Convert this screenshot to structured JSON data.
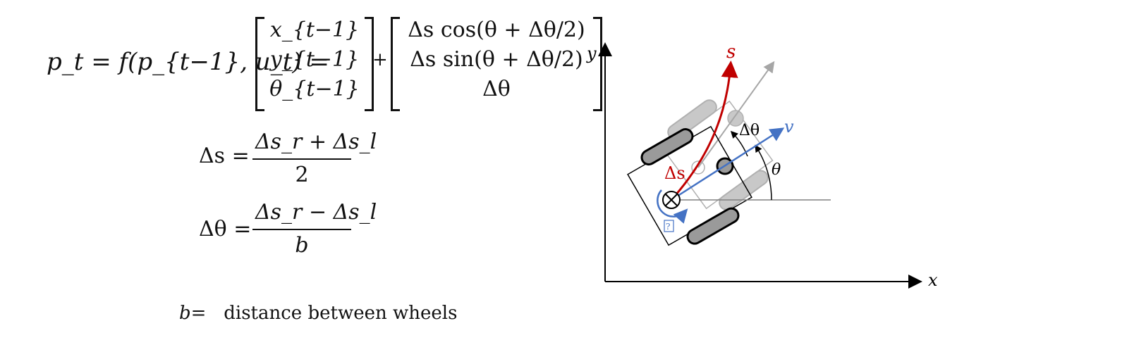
{
  "equation": {
    "lhs": "p_t = f(p_{t−1}, u_t) =",
    "state_vector": [
      "x_{t−1}",
      "y_{t−1}",
      "θ_{t−1}"
    ],
    "increment_vector": [
      "Δs cos(θ + Δθ/2)",
      "Δs sin(θ + Δθ/2)",
      "Δθ"
    ],
    "plus": "+"
  },
  "ds_equation": {
    "lhs": "Δs =",
    "numerator": "Δs_r + Δs_l",
    "denominator": "2"
  },
  "dtheta_equation": {
    "lhs": "Δθ =",
    "numerator": "Δs_r − Δs_l",
    "denominator": "b"
  },
  "definition": {
    "symbol": "b",
    "equals": "=",
    "text": "distance between  wheels"
  },
  "diagram": {
    "axis_x_label": "x",
    "axis_y_label": "y",
    "path_label": "s",
    "delta_s_label": "Δs",
    "velocity_label": "v",
    "delta_theta_label": "Δθ",
    "theta_label": "θ",
    "rotation_glyph": "?",
    "colors": {
      "path": "#c00000",
      "velocity": "#4472c4",
      "ghost": "#a6a6a6",
      "axis": "#000000"
    }
  }
}
